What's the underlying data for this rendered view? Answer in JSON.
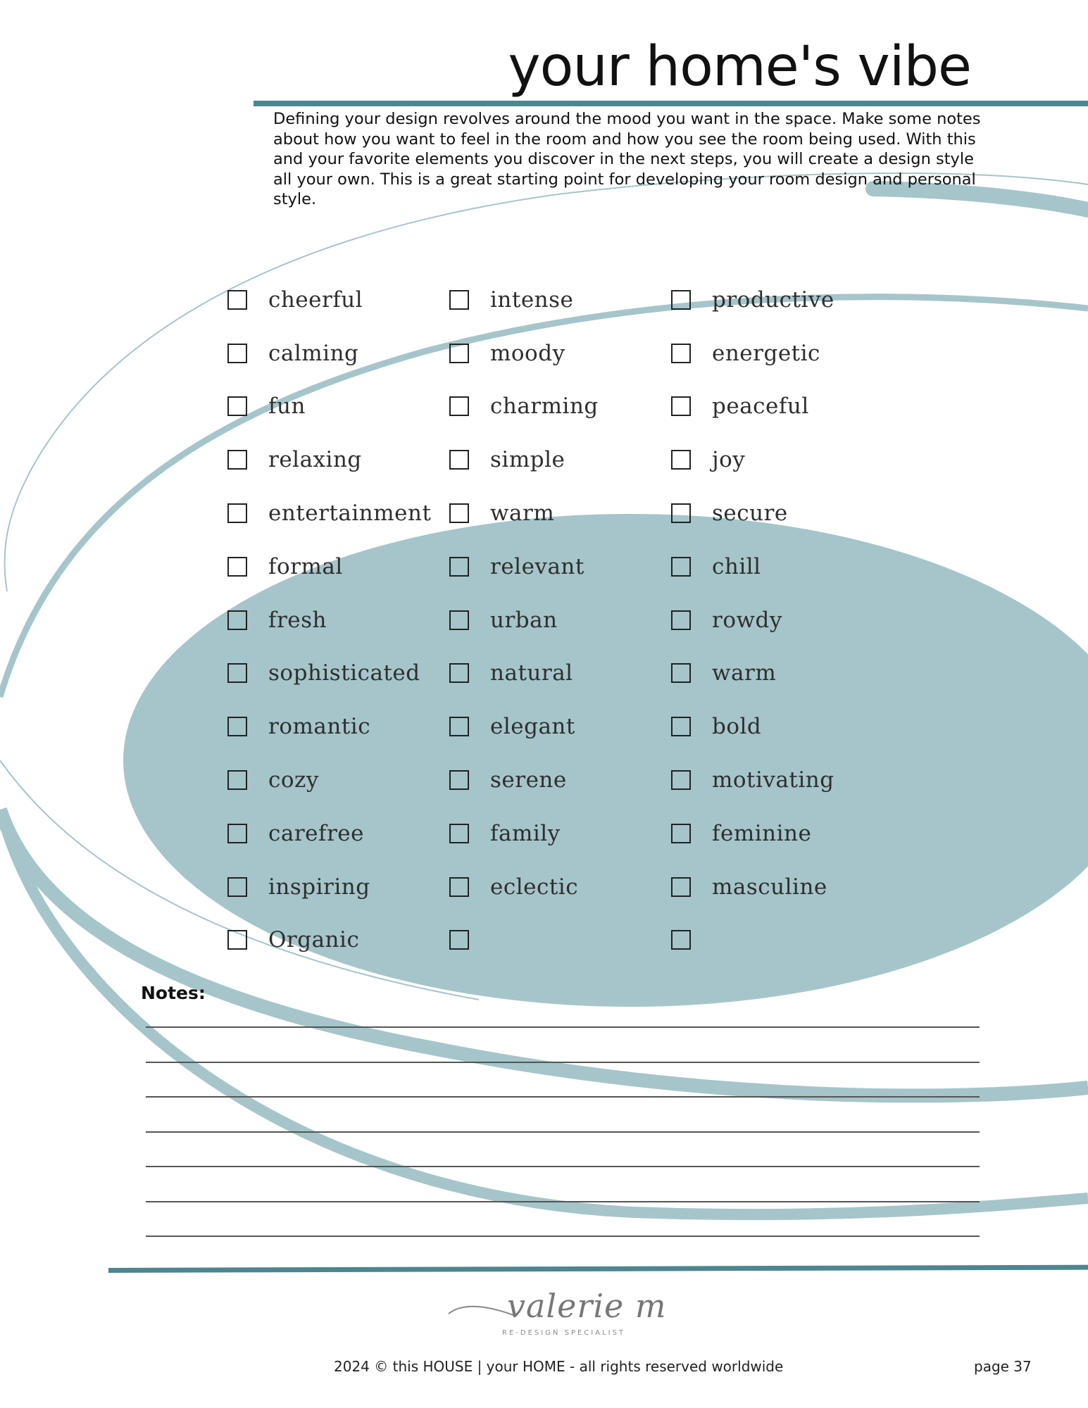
{
  "header": {
    "title": "your home's vibe",
    "intro": "Defining your design revolves around the mood you want in the space. Make some notes about how you want to feel in the room and how you see the room being used. With this and your favorite elements you discover in the next steps, you will create a design style all your own. This is a great starting point for developing your room design and personal style."
  },
  "checklist": {
    "col1": [
      "cheerful",
      "calming",
      "fun",
      "relaxing",
      "entertainment",
      "formal",
      "fresh",
      "sophisticated",
      "romantic",
      "cozy",
      "carefree",
      "inspiring",
      "Organic"
    ],
    "col2": [
      "intense",
      "moody",
      "charming",
      "simple",
      "warm",
      "relevant",
      "urban",
      "natural",
      "elegant",
      "serene",
      "family",
      "eclectic",
      ""
    ],
    "col3": [
      "productive",
      "energetic",
      "peaceful",
      "joy",
      "secure",
      "chill",
      "rowdy",
      "warm",
      "bold",
      "motivating",
      "feminine",
      "masculine",
      ""
    ]
  },
  "notes": {
    "label": "Notes:",
    "line_count": 7
  },
  "branding": {
    "logo_script": "valerie m",
    "logo_tagline": "RE-DESIGN SPECIALIST"
  },
  "footer": {
    "copyright": "2024 © this HOUSE | your HOME - all rights reserved worldwide",
    "page": "page 37"
  },
  "colors": {
    "accent": "#4c8690",
    "decor": "#a5c5ca"
  }
}
